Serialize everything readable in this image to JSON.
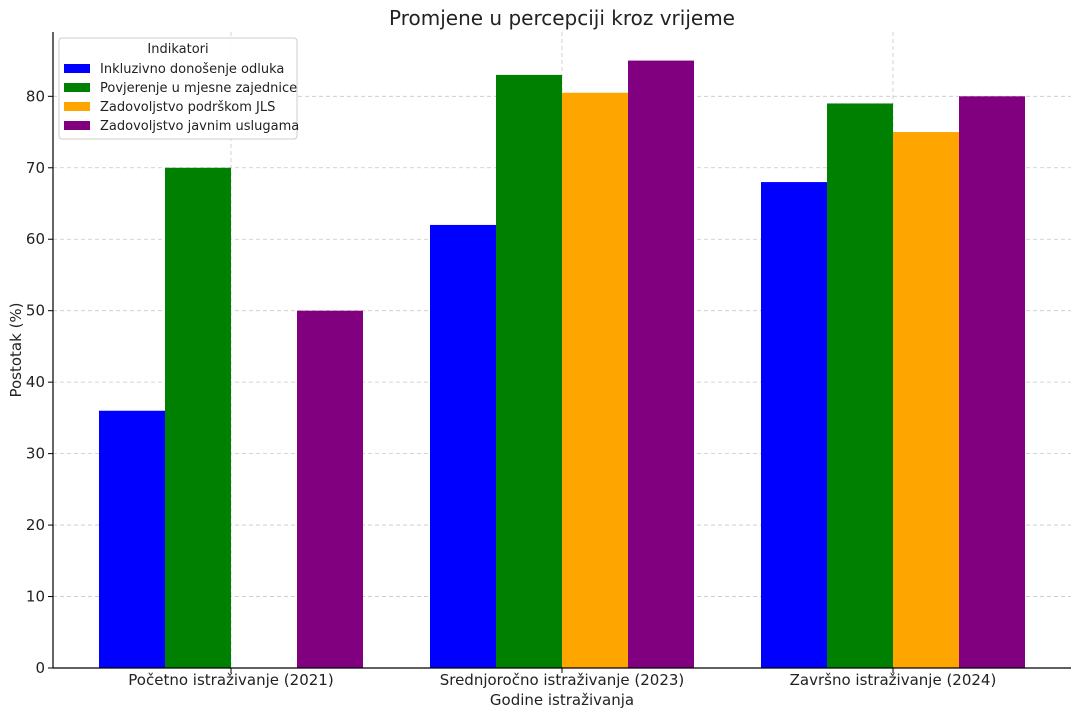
{
  "chart_data": {
    "type": "bar",
    "title": "Promjene u percepciji kroz vrijeme",
    "xlabel": "Godine istraživanja",
    "ylabel": "Postotak (%)",
    "ylim": [
      0,
      89
    ],
    "yticks": [
      0,
      10,
      20,
      30,
      40,
      50,
      60,
      70,
      80
    ],
    "grid": true,
    "legend_position": "top-left",
    "legend_title": "Indikatori",
    "categories": [
      "Početno istraživanje (2021)",
      "Srednjoročno istraživanje (2023)",
      "Završno istraživanje (2024)"
    ],
    "series": [
      {
        "name": "Inkluzivno donošenje odluka",
        "color": "#0000ff",
        "values": [
          36,
          62,
          68
        ]
      },
      {
        "name": "Povjerenje u mjesne zajednice",
        "color": "#008000",
        "values": [
          70,
          83,
          79
        ]
      },
      {
        "name": "Zadovoljstvo podrškom JLS",
        "color": "#ffa500",
        "values": [
          null,
          80.5,
          75
        ]
      },
      {
        "name": "Zadovoljstvo javnim uslugama",
        "color": "#800080",
        "values": [
          50,
          85,
          80
        ]
      }
    ]
  }
}
